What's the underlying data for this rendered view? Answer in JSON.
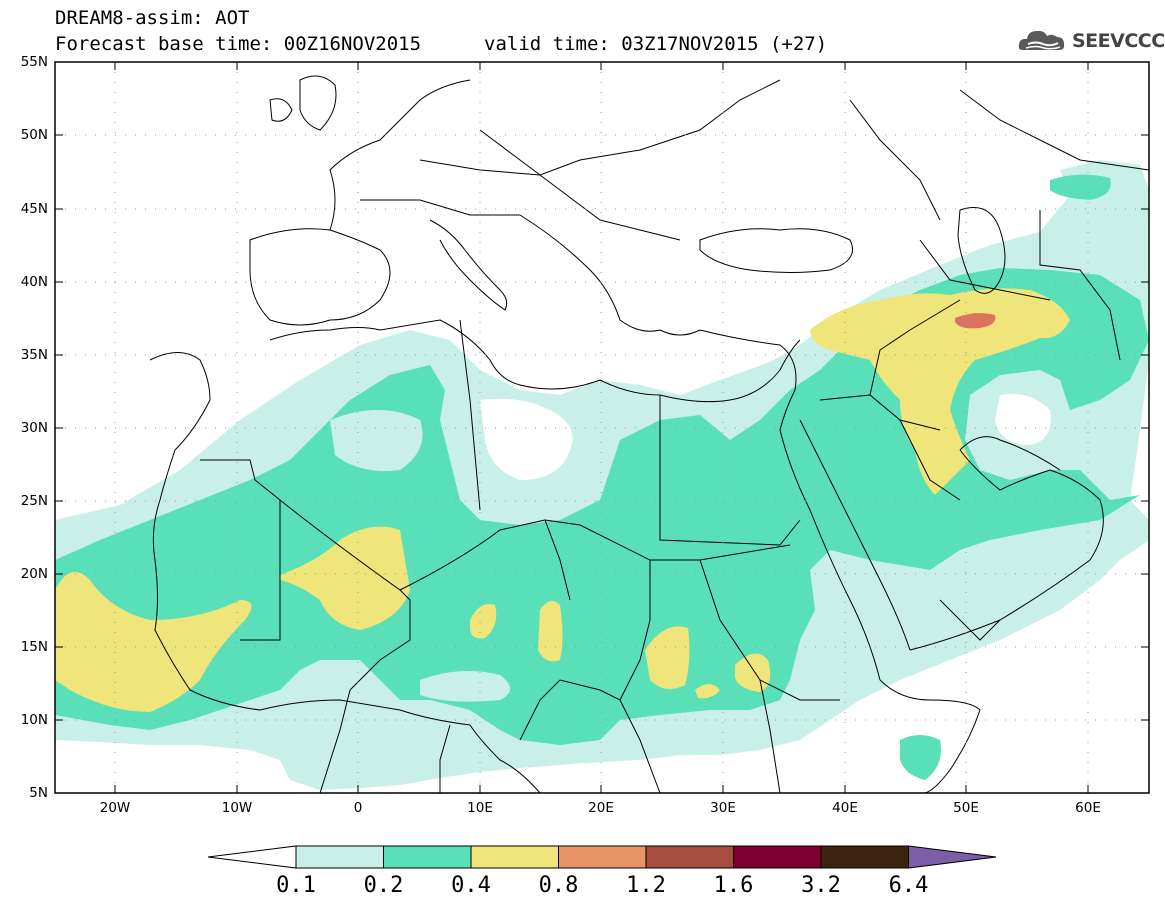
{
  "header": {
    "title": "DREAM8-assim: AOT",
    "base_time": "Forecast base time: 00Z16NOV2015",
    "valid_time": "valid time: 03Z17NOV2015 (+27)"
  },
  "logo": {
    "text": "SEEVCCC",
    "icon": "cloud-logo-icon"
  },
  "map": {
    "lat_labels": [
      "55N",
      "50N",
      "45N",
      "40N",
      "35N",
      "30N",
      "25N",
      "20N",
      "15N",
      "10N",
      "5N"
    ],
    "lon_labels": [
      "20W",
      "10W",
      "0",
      "10E",
      "20E",
      "30E",
      "40E",
      "50E",
      "60E"
    ],
    "colors": {
      "level_0_1": "#c8f0e8",
      "level_0_2": "#5ae0b9",
      "level_0_4": "#f0e57a",
      "level_1_2": "#dc7360"
    }
  },
  "colorbar": {
    "labels": [
      "0.1",
      "0.2",
      "0.4",
      "0.8",
      "1.2",
      "1.6",
      "3.2",
      "6.4"
    ],
    "colors": [
      "#ffffff",
      "#c8f0e8",
      "#5ae0b9",
      "#f0e57a",
      "#e89468",
      "#a84e40",
      "#7c0030",
      "#3e2410",
      "#7b5ea7"
    ]
  }
}
